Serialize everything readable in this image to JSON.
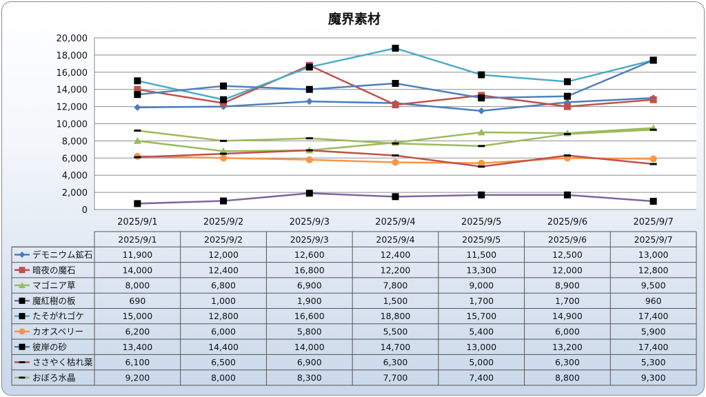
{
  "chart_data": {
    "type": "line",
    "title": "魔界素材",
    "categories": [
      "2025/9/1",
      "2025/9/2",
      "2025/9/3",
      "2025/9/4",
      "2025/9/5",
      "2025/9/6",
      "2025/9/7"
    ],
    "ylim": [
      0,
      20000
    ],
    "yticks": [
      "0",
      "2,000",
      "4,000",
      "6,000",
      "8,000",
      "10,000",
      "12,000",
      "14,000",
      "16,000",
      "18,000",
      "20,000"
    ],
    "grid": true,
    "legend": "data-table",
    "series": [
      {
        "name": "デモニウム鉱石",
        "color": "#4a7ebb",
        "marker": "diamond",
        "values": [
          11900,
          12000,
          12600,
          12400,
          11500,
          12500,
          13000
        ],
        "labels": [
          "11,900",
          "12,000",
          "12,600",
          "12,400",
          "11,500",
          "12,500",
          "13,000"
        ]
      },
      {
        "name": "暗夜の魔石",
        "color": "#c0504d",
        "marker": "square",
        "values": [
          14000,
          12400,
          16800,
          12200,
          13300,
          12000,
          12800
        ],
        "labels": [
          "14,000",
          "12,400",
          "16,800",
          "12,200",
          "13,300",
          "12,000",
          "12,800"
        ]
      },
      {
        "name": "マゴニア草",
        "color": "#9bbb59",
        "marker": "triangle",
        "values": [
          8000,
          6800,
          6900,
          7800,
          9000,
          8900,
          9500
        ],
        "labels": [
          "8,000",
          "6,800",
          "6,900",
          "7,800",
          "9,000",
          "8,900",
          "9,500"
        ]
      },
      {
        "name": "魔紅樹の板",
        "color": "#8064a2",
        "marker": "blacksquare",
        "values": [
          690,
          1000,
          1900,
          1500,
          1700,
          1700,
          960
        ],
        "labels": [
          "690",
          "1,000",
          "1,900",
          "1,500",
          "1,700",
          "1,700",
          "960"
        ]
      },
      {
        "name": "たそがれゴケ",
        "color": "#4bacc6",
        "marker": "blacksquare",
        "values": [
          15000,
          12800,
          16600,
          18800,
          15700,
          14900,
          17400
        ],
        "labels": [
          "15,000",
          "12,800",
          "16,600",
          "18,800",
          "15,700",
          "14,900",
          "17,400"
        ]
      },
      {
        "name": "カオスベリー",
        "color": "#f79646",
        "marker": "circle",
        "values": [
          6200,
          6000,
          5800,
          5500,
          5400,
          6000,
          5900
        ],
        "labels": [
          "6,200",
          "6,000",
          "5,800",
          "5,500",
          "5,400",
          "6,000",
          "5,900"
        ]
      },
      {
        "name": "彼岸の砂",
        "color": "#4f81bd",
        "marker": "blacksquare",
        "values": [
          13400,
          14400,
          14000,
          14700,
          13000,
          13200,
          17400
        ],
        "labels": [
          "13,400",
          "14,400",
          "14,000",
          "14,700",
          "13,000",
          "13,200",
          "17,400"
        ]
      },
      {
        "name": "ささやく枯れ葉",
        "color": "#c0504d",
        "marker": "dash",
        "values": [
          6100,
          6500,
          6900,
          6300,
          5000,
          6300,
          5300
        ],
        "labels": [
          "6,100",
          "6,500",
          "6,900",
          "6,300",
          "5,000",
          "6,300",
          "5,300"
        ]
      },
      {
        "name": "おぼろ水晶",
        "color": "#9bbb59",
        "marker": "dash",
        "values": [
          9200,
          8000,
          8300,
          7700,
          7400,
          8800,
          9300
        ],
        "labels": [
          "9,200",
          "8,000",
          "8,300",
          "7,700",
          "7,400",
          "8,800",
          "9,300"
        ]
      }
    ]
  }
}
